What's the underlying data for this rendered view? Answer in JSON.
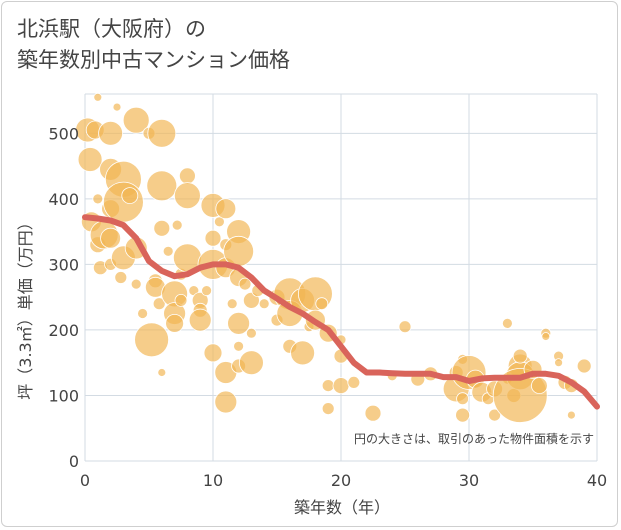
{
  "title_lines": [
    "北浜駅（大阪府）の",
    "築年数別中古マンション価格"
  ],
  "colors": {
    "bubble": "#F2B552",
    "line": "#D9645B",
    "grid": "#d3dbe3",
    "text": "#444444"
  },
  "chart_data": {
    "type": "scatter",
    "title": "北浜駅（大阪府）の 築年数別中古マンション価格",
    "xlabel": "築年数（年）",
    "ylabel": "坪（3.3㎡）単価（万円）",
    "xlim": [
      0,
      40
    ],
    "ylim": [
      0,
      560
    ],
    "xticks": [
      0,
      10,
      20,
      30,
      40
    ],
    "yticks": [
      0,
      100,
      200,
      300,
      400,
      500
    ],
    "grid": true,
    "annotation": "円の大きさは、取引のあった物件面積を示す",
    "bubbles": [
      {
        "x": 0.2,
        "y": 505,
        "r": 12
      },
      {
        "x": 0.4,
        "y": 460,
        "r": 12
      },
      {
        "x": 0.8,
        "y": 505,
        "r": 9
      },
      {
        "x": 1,
        "y": 555,
        "r": 4
      },
      {
        "x": 0.5,
        "y": 365,
        "r": 10
      },
      {
        "x": 1,
        "y": 330,
        "r": 8
      },
      {
        "x": 1,
        "y": 400,
        "r": 5
      },
      {
        "x": 1.2,
        "y": 295,
        "r": 7
      },
      {
        "x": 1.5,
        "y": 345,
        "r": 14
      },
      {
        "x": 2,
        "y": 500,
        "r": 12
      },
      {
        "x": 2,
        "y": 445,
        "r": 11
      },
      {
        "x": 2,
        "y": 385,
        "r": 9
      },
      {
        "x": 2,
        "y": 340,
        "r": 10
      },
      {
        "x": 2,
        "y": 300,
        "r": 6
      },
      {
        "x": 2.5,
        "y": 540,
        "r": 4
      },
      {
        "x": 3,
        "y": 430,
        "r": 18
      },
      {
        "x": 3,
        "y": 395,
        "r": 20
      },
      {
        "x": 3,
        "y": 310,
        "r": 12
      },
      {
        "x": 2.8,
        "y": 280,
        "r": 6
      },
      {
        "x": 3.5,
        "y": 405,
        "r": 8
      },
      {
        "x": 4,
        "y": 520,
        "r": 13
      },
      {
        "x": 4,
        "y": 325,
        "r": 11
      },
      {
        "x": 4,
        "y": 270,
        "r": 5
      },
      {
        "x": 4.5,
        "y": 225,
        "r": 5
      },
      {
        "x": 5,
        "y": 500,
        "r": 6
      },
      {
        "x": 5.2,
        "y": 185,
        "r": 17
      },
      {
        "x": 5.5,
        "y": 275,
        "r": 7
      },
      {
        "x": 5.5,
        "y": 265,
        "r": 10
      },
      {
        "x": 6,
        "y": 500,
        "r": 14
      },
      {
        "x": 6,
        "y": 420,
        "r": 15
      },
      {
        "x": 6,
        "y": 355,
        "r": 8
      },
      {
        "x": 5.8,
        "y": 240,
        "r": 6
      },
      {
        "x": 6,
        "y": 135,
        "r": 4
      },
      {
        "x": 6.5,
        "y": 320,
        "r": 5
      },
      {
        "x": 7,
        "y": 255,
        "r": 13
      },
      {
        "x": 7,
        "y": 225,
        "r": 11
      },
      {
        "x": 7,
        "y": 210,
        "r": 9
      },
      {
        "x": 7.2,
        "y": 360,
        "r": 5
      },
      {
        "x": 7.5,
        "y": 285,
        "r": 6
      },
      {
        "x": 7.5,
        "y": 245,
        "r": 6
      },
      {
        "x": 8,
        "y": 435,
        "r": 8
      },
      {
        "x": 8,
        "y": 405,
        "r": 13
      },
      {
        "x": 8,
        "y": 310,
        "r": 14
      },
      {
        "x": 8.5,
        "y": 260,
        "r": 5
      },
      {
        "x": 9,
        "y": 245,
        "r": 8
      },
      {
        "x": 9,
        "y": 230,
        "r": 7
      },
      {
        "x": 9,
        "y": 215,
        "r": 11
      },
      {
        "x": 9.5,
        "y": 260,
        "r": 5
      },
      {
        "x": 10,
        "y": 390,
        "r": 12
      },
      {
        "x": 10,
        "y": 340,
        "r": 8
      },
      {
        "x": 10,
        "y": 300,
        "r": 15
      },
      {
        "x": 10,
        "y": 165,
        "r": 9
      },
      {
        "x": 10.5,
        "y": 365,
        "r": 5
      },
      {
        "x": 11,
        "y": 385,
        "r": 10
      },
      {
        "x": 11,
        "y": 330,
        "r": 6
      },
      {
        "x": 11,
        "y": 295,
        "r": 10
      },
      {
        "x": 11,
        "y": 135,
        "r": 11
      },
      {
        "x": 11,
        "y": 90,
        "r": 11
      },
      {
        "x": 11.5,
        "y": 240,
        "r": 5
      },
      {
        "x": 12,
        "y": 350,
        "r": 12
      },
      {
        "x": 12,
        "y": 320,
        "r": 15
      },
      {
        "x": 12,
        "y": 280,
        "r": 9
      },
      {
        "x": 12,
        "y": 210,
        "r": 11
      },
      {
        "x": 12,
        "y": 175,
        "r": 5
      },
      {
        "x": 12,
        "y": 145,
        "r": 7
      },
      {
        "x": 12.5,
        "y": 270,
        "r": 6
      },
      {
        "x": 13,
        "y": 245,
        "r": 8
      },
      {
        "x": 13,
        "y": 195,
        "r": 5
      },
      {
        "x": 13,
        "y": 150,
        "r": 12
      },
      {
        "x": 13.5,
        "y": 260,
        "r": 6
      },
      {
        "x": 14,
        "y": 240,
        "r": 5
      },
      {
        "x": 15,
        "y": 250,
        "r": 8
      },
      {
        "x": 15,
        "y": 215,
        "r": 6
      },
      {
        "x": 16,
        "y": 255,
        "r": 16
      },
      {
        "x": 16,
        "y": 225,
        "r": 13
      },
      {
        "x": 16,
        "y": 175,
        "r": 7
      },
      {
        "x": 17,
        "y": 245,
        "r": 12
      },
      {
        "x": 17,
        "y": 165,
        "r": 12
      },
      {
        "x": 17.5,
        "y": 205,
        "r": 5
      },
      {
        "x": 18,
        "y": 255,
        "r": 17
      },
      {
        "x": 18,
        "y": 215,
        "r": 10
      },
      {
        "x": 18.5,
        "y": 240,
        "r": 6
      },
      {
        "x": 19,
        "y": 195,
        "r": 9
      },
      {
        "x": 19,
        "y": 115,
        "r": 6
      },
      {
        "x": 19,
        "y": 80,
        "r": 6
      },
      {
        "x": 20,
        "y": 185,
        "r": 5
      },
      {
        "x": 20,
        "y": 160,
        "r": 7
      },
      {
        "x": 20,
        "y": 115,
        "r": 8
      },
      {
        "x": 21,
        "y": 120,
        "r": 6
      },
      {
        "x": 22.5,
        "y": 73,
        "r": 8
      },
      {
        "x": 24,
        "y": 130,
        "r": 5
      },
      {
        "x": 25,
        "y": 205,
        "r": 6
      },
      {
        "x": 26,
        "y": 125,
        "r": 7
      },
      {
        "x": 27,
        "y": 133,
        "r": 7
      },
      {
        "x": 29,
        "y": 135,
        "r": 7
      },
      {
        "x": 29,
        "y": 110,
        "r": 13
      },
      {
        "x": 29.5,
        "y": 155,
        "r": 5
      },
      {
        "x": 30,
        "y": 135,
        "r": 17
      },
      {
        "x": 29.5,
        "y": 95,
        "r": 6
      },
      {
        "x": 29.5,
        "y": 70,
        "r": 7
      },
      {
        "x": 30.5,
        "y": 125,
        "r": 9
      },
      {
        "x": 31,
        "y": 105,
        "r": 10
      },
      {
        "x": 31.5,
        "y": 95,
        "r": 6
      },
      {
        "x": 32,
        "y": 110,
        "r": 8
      },
      {
        "x": 32,
        "y": 70,
        "r": 6
      },
      {
        "x": 33,
        "y": 210,
        "r": 5
      },
      {
        "x": 33,
        "y": 125,
        "r": 5
      },
      {
        "x": 33.5,
        "y": 100,
        "r": 7
      },
      {
        "x": 34,
        "y": 145,
        "r": 12
      },
      {
        "x": 34,
        "y": 130,
        "r": 14
      },
      {
        "x": 34,
        "y": 100,
        "r": 27
      },
      {
        "x": 34,
        "y": 160,
        "r": 7
      },
      {
        "x": 35,
        "y": 140,
        "r": 9
      },
      {
        "x": 35.5,
        "y": 115,
        "r": 8
      },
      {
        "x": 36,
        "y": 195,
        "r": 5
      },
      {
        "x": 36,
        "y": 190,
        "r": 4
      },
      {
        "x": 37,
        "y": 160,
        "r": 5
      },
      {
        "x": 37,
        "y": 150,
        "r": 4
      },
      {
        "x": 37.5,
        "y": 120,
        "r": 7
      },
      {
        "x": 38,
        "y": 115,
        "r": 7
      },
      {
        "x": 38,
        "y": 70,
        "r": 4
      },
      {
        "x": 39,
        "y": 145,
        "r": 7
      }
    ],
    "trend": {
      "x": [
        0,
        1,
        2,
        3,
        4,
        5,
        6,
        7,
        8,
        9,
        10,
        11,
        12,
        13,
        14,
        15,
        16,
        17,
        18,
        19,
        20,
        21,
        22,
        23,
        24,
        25,
        26,
        27,
        28,
        29,
        30,
        31,
        32,
        33,
        34,
        35,
        36,
        37,
        38,
        39,
        40
      ],
      "y": [
        372,
        370,
        367,
        360,
        340,
        305,
        290,
        282,
        285,
        295,
        300,
        300,
        295,
        280,
        260,
        248,
        235,
        225,
        212,
        200,
        175,
        150,
        135,
        135,
        134,
        133,
        133,
        133,
        128,
        128,
        122,
        126,
        127,
        127,
        127,
        133,
        133,
        130,
        120,
        106,
        83
      ]
    }
  }
}
